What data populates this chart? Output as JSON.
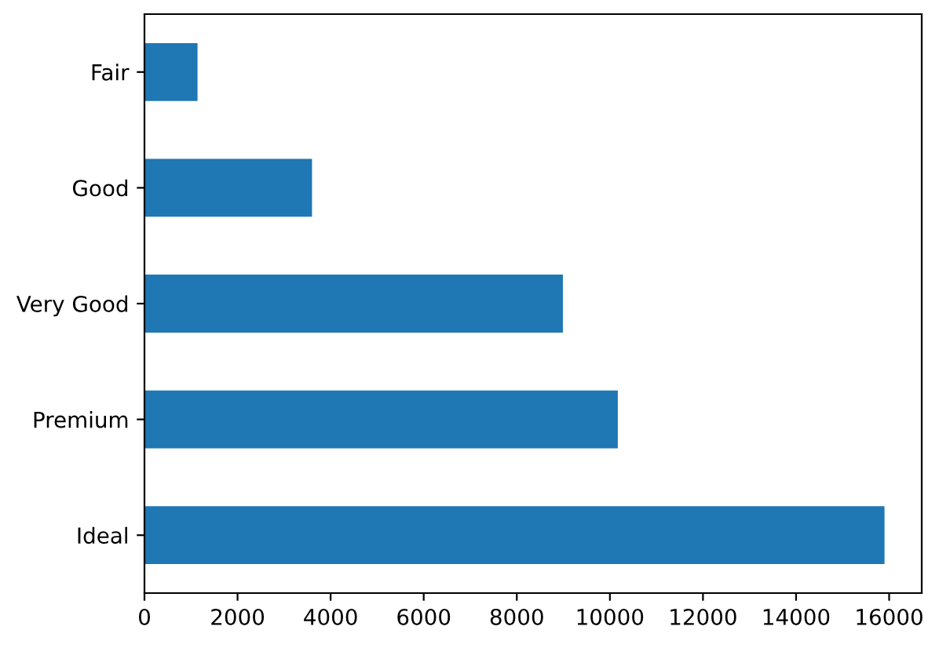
{
  "chart_data": {
    "type": "bar",
    "orientation": "horizontal",
    "categories": [
      "Fair",
      "Good",
      "Very Good",
      "Premium",
      "Ideal"
    ],
    "values": [
      1140,
      3600,
      8990,
      10170,
      15900
    ],
    "color": "#1f77b4",
    "xlim": [
      0,
      16700
    ],
    "xticks": [
      0,
      2000,
      4000,
      6000,
      8000,
      10000,
      12000,
      14000,
      16000
    ],
    "grid": false,
    "legend": false
  }
}
